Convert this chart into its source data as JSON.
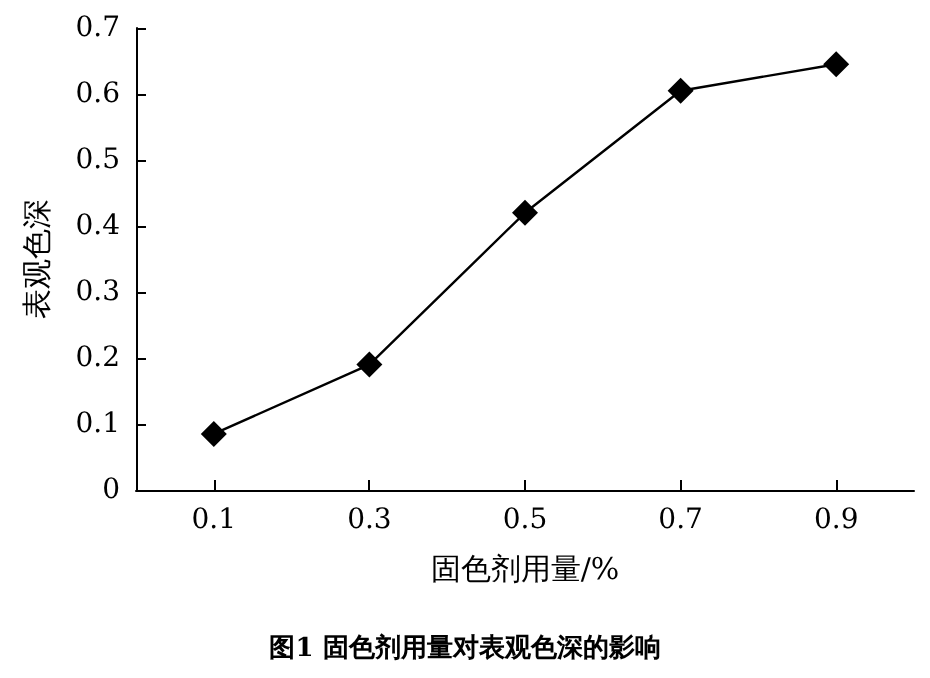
{
  "chart_data": {
    "type": "line",
    "xlabel": "固色剂用量/%",
    "ylabel": "表观色深",
    "categories": [
      "0.1",
      "0.3",
      "0.5",
      "0.7",
      "0.9"
    ],
    "series": [
      {
        "color": "#000000",
        "values": [
          0.085,
          0.19,
          0.42,
          0.605,
          0.645
        ]
      }
    ],
    "ylim": [
      0,
      0.7
    ],
    "yticks": [
      0,
      0.1,
      0.2,
      0.3,
      0.4,
      0.5,
      0.6,
      0.7
    ],
    "marker": "diamond",
    "line_style": "solid",
    "grid": false,
    "annotations": [
      "图1 固色剂用量对表观色深的影响"
    ]
  }
}
